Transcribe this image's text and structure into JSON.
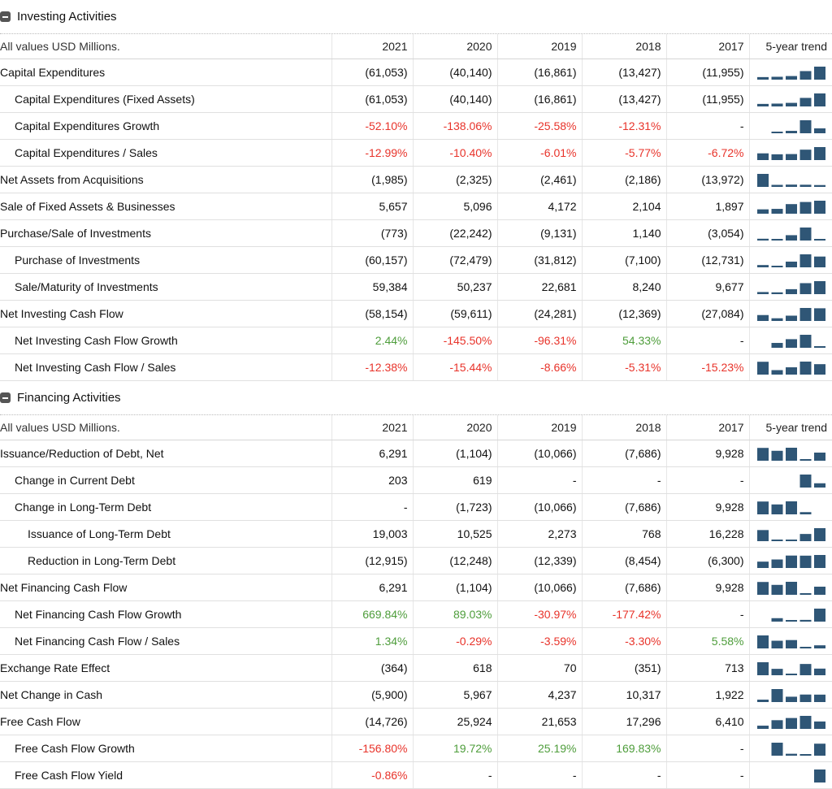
{
  "colors": {
    "negative": "#e8332a",
    "positive": "#4e9d3b",
    "trend": "#2f5676"
  },
  "header": {
    "units": "All values USD Millions.",
    "years": [
      "2021",
      "2020",
      "2019",
      "2018",
      "2017"
    ],
    "trend": "5-year trend"
  },
  "sections": [
    {
      "title": "Investing Activities",
      "rows": [
        {
          "label": "Capital Expenditures",
          "level": 0,
          "values": [
            "(61,053)",
            "(40,140)",
            "(16,861)",
            "(13,427)",
            "(11,955)"
          ],
          "tone": [
            "",
            "",
            "",
            "",
            ""
          ],
          "trend": [
            61053,
            40140,
            16861,
            13427,
            11955
          ]
        },
        {
          "label": "Capital Expenditures (Fixed Assets)",
          "level": 1,
          "values": [
            "(61,053)",
            "(40,140)",
            "(16,861)",
            "(13,427)",
            "(11,955)"
          ],
          "tone": [
            "",
            "",
            "",
            "",
            ""
          ],
          "trend": [
            61053,
            40140,
            16861,
            13427,
            11955
          ]
        },
        {
          "label": "Capital Expenditures Growth",
          "level": 1,
          "values": [
            "-52.10%",
            "-138.06%",
            "-25.58%",
            "-12.31%",
            "-"
          ],
          "tone": [
            "neg",
            "neg",
            "neg",
            "neg",
            ""
          ],
          "trend": [
            52.1,
            138.06,
            25.58,
            12.31,
            0
          ]
        },
        {
          "label": "Capital Expenditures / Sales",
          "level": 1,
          "values": [
            "-12.99%",
            "-10.40%",
            "-6.01%",
            "-5.77%",
            "-6.72%"
          ],
          "tone": [
            "neg",
            "neg",
            "neg",
            "neg",
            "neg"
          ],
          "trend": [
            12.99,
            10.4,
            6.01,
            5.77,
            6.72
          ]
        },
        {
          "label": "Net Assets from Acquisitions",
          "level": 0,
          "values": [
            "(1,985)",
            "(2,325)",
            "(2,461)",
            "(2,186)",
            "(13,972)"
          ],
          "tone": [
            "",
            "",
            "",
            "",
            ""
          ],
          "trend": [
            1985,
            2325,
            2461,
            2186,
            13972
          ]
        },
        {
          "label": "Sale of Fixed Assets & Businesses",
          "level": 0,
          "values": [
            "5,657",
            "5,096",
            "4,172",
            "2,104",
            "1,897"
          ],
          "tone": [
            "",
            "",
            "",
            "",
            ""
          ],
          "trend": [
            5657,
            5096,
            4172,
            2104,
            1897
          ]
        },
        {
          "label": "Purchase/Sale of Investments",
          "level": 0,
          "values": [
            "(773)",
            "(22,242)",
            "(9,131)",
            "1,140",
            "(3,054)"
          ],
          "tone": [
            "",
            "",
            "",
            "",
            ""
          ],
          "trend": [
            773,
            22242,
            9131,
            1140,
            3054
          ]
        },
        {
          "label": "Purchase of Investments",
          "level": 1,
          "values": [
            "(60,157)",
            "(72,479)",
            "(31,812)",
            "(7,100)",
            "(12,731)"
          ],
          "tone": [
            "",
            "",
            "",
            "",
            ""
          ],
          "trend": [
            60157,
            72479,
            31812,
            7100,
            12731
          ]
        },
        {
          "label": "Sale/Maturity of Investments",
          "level": 1,
          "values": [
            "59,384",
            "50,237",
            "22,681",
            "8,240",
            "9,677"
          ],
          "tone": [
            "",
            "",
            "",
            "",
            ""
          ],
          "trend": [
            59384,
            50237,
            22681,
            8240,
            9677
          ]
        },
        {
          "label": "Net Investing Cash Flow",
          "level": 0,
          "values": [
            "(58,154)",
            "(59,611)",
            "(24,281)",
            "(12,369)",
            "(27,084)"
          ],
          "tone": [
            "",
            "",
            "",
            "",
            ""
          ],
          "trend": [
            58154,
            59611,
            24281,
            12369,
            27084
          ]
        },
        {
          "label": "Net Investing Cash Flow Growth",
          "level": 1,
          "values": [
            "2.44%",
            "-145.50%",
            "-96.31%",
            "54.33%",
            "-"
          ],
          "tone": [
            "pos",
            "neg",
            "neg",
            "pos",
            ""
          ],
          "trend": [
            2.44,
            145.5,
            96.31,
            54.33,
            0
          ]
        },
        {
          "label": "Net Investing Cash Flow / Sales",
          "level": 1,
          "values": [
            "-12.38%",
            "-15.44%",
            "-8.66%",
            "-5.31%",
            "-15.23%"
          ],
          "tone": [
            "neg",
            "neg",
            "neg",
            "neg",
            "neg"
          ],
          "trend": [
            12.38,
            15.44,
            8.66,
            5.31,
            15.23
          ]
        }
      ]
    },
    {
      "title": "Financing Activities",
      "rows": [
        {
          "label": "Issuance/Reduction of Debt, Net",
          "level": 0,
          "values": [
            "6,291",
            "(1,104)",
            "(10,066)",
            "(7,686)",
            "9,928"
          ],
          "tone": [
            "",
            "",
            "",
            "",
            ""
          ],
          "trend": [
            6291,
            1104,
            10066,
            7686,
            9928
          ]
        },
        {
          "label": "Change in Current Debt",
          "level": 1,
          "values": [
            "203",
            "619",
            "-",
            "-",
            "-"
          ],
          "tone": [
            "",
            "",
            "",
            "",
            ""
          ],
          "trend": [
            203,
            619,
            0,
            0,
            0
          ]
        },
        {
          "label": "Change in Long-Term Debt",
          "level": 1,
          "values": [
            "-",
            "(1,723)",
            "(10,066)",
            "(7,686)",
            "9,928"
          ],
          "tone": [
            "",
            "",
            "",
            "",
            ""
          ],
          "trend": [
            0,
            1723,
            10066,
            7686,
            9928
          ]
        },
        {
          "label": "Issuance of Long-Term Debt",
          "level": 2,
          "values": [
            "19,003",
            "10,525",
            "2,273",
            "768",
            "16,228"
          ],
          "tone": [
            "",
            "",
            "",
            "",
            ""
          ],
          "trend": [
            19003,
            10525,
            2273,
            768,
            16228
          ]
        },
        {
          "label": "Reduction in Long-Term Debt",
          "level": 2,
          "values": [
            "(12,915)",
            "(12,248)",
            "(12,339)",
            "(8,454)",
            "(6,300)"
          ],
          "tone": [
            "",
            "",
            "",
            "",
            ""
          ],
          "trend": [
            12915,
            12248,
            12339,
            8454,
            6300
          ]
        },
        {
          "label": "Net Financing Cash Flow",
          "level": 0,
          "values": [
            "6,291",
            "(1,104)",
            "(10,066)",
            "(7,686)",
            "9,928"
          ],
          "tone": [
            "",
            "",
            "",
            "",
            ""
          ],
          "trend": [
            6291,
            1104,
            10066,
            7686,
            9928
          ]
        },
        {
          "label": "Net Financing Cash Flow Growth",
          "level": 1,
          "values": [
            "669.84%",
            "89.03%",
            "-30.97%",
            "-177.42%",
            "-"
          ],
          "tone": [
            "pos",
            "pos",
            "neg",
            "neg",
            ""
          ],
          "trend": [
            669.84,
            89.03,
            30.97,
            177.42,
            0
          ]
        },
        {
          "label": "Net Financing Cash Flow / Sales",
          "level": 1,
          "values": [
            "1.34%",
            "-0.29%",
            "-3.59%",
            "-3.30%",
            "5.58%"
          ],
          "tone": [
            "pos",
            "neg",
            "neg",
            "neg",
            "pos"
          ],
          "trend": [
            1.34,
            0.29,
            3.59,
            3.3,
            5.58
          ]
        },
        {
          "label": "Exchange Rate Effect",
          "level": 0,
          "values": [
            "(364)",
            "618",
            "70",
            "(351)",
            "713"
          ],
          "tone": [
            "",
            "",
            "",
            "",
            ""
          ],
          "trend": [
            364,
            618,
            70,
            351,
            713
          ]
        },
        {
          "label": "Net Change in Cash",
          "level": 0,
          "values": [
            "(5,900)",
            "5,967",
            "4,237",
            "10,317",
            "1,922"
          ],
          "tone": [
            "",
            "",
            "",
            "",
            ""
          ],
          "trend": [
            5900,
            5967,
            4237,
            10317,
            1922
          ]
        },
        {
          "label": "Free Cash Flow",
          "level": 0,
          "values": [
            "(14,726)",
            "25,924",
            "21,653",
            "17,296",
            "6,410"
          ],
          "tone": [
            "",
            "",
            "",
            "",
            ""
          ],
          "trend": [
            14726,
            25924,
            21653,
            17296,
            6410
          ]
        },
        {
          "label": "Free Cash Flow Growth",
          "level": 1,
          "values": [
            "-156.80%",
            "19.72%",
            "25.19%",
            "169.83%",
            "-"
          ],
          "tone": [
            "neg",
            "pos",
            "pos",
            "pos",
            ""
          ],
          "trend": [
            156.8,
            19.72,
            25.19,
            169.83,
            0
          ]
        },
        {
          "label": "Free Cash Flow Yield",
          "level": 1,
          "values": [
            "-0.86%",
            "-",
            "-",
            "-",
            "-"
          ],
          "tone": [
            "neg",
            "",
            "",
            "",
            ""
          ],
          "trend": [
            0.86,
            0,
            0,
            0,
            0
          ]
        }
      ]
    }
  ]
}
